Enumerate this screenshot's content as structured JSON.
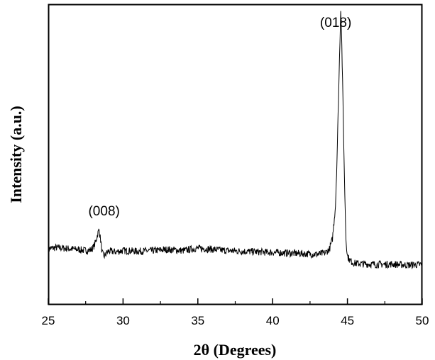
{
  "chart_data": {
    "type": "line",
    "title": "",
    "xlabel": "2θ (Degrees)",
    "ylabel": "Intensity (a.u.)",
    "xlim": [
      25,
      50
    ],
    "ylim": [
      0,
      1
    ],
    "x_ticks": [
      25,
      30,
      35,
      40,
      45,
      50
    ],
    "y_ticks_labeled": false,
    "grid": false,
    "legend": "none",
    "line_color": "#000000",
    "annotations": [
      {
        "text": "(008)",
        "x": 28.4
      },
      {
        "text": "(018)",
        "x": 44.55
      }
    ],
    "series": [
      {
        "x": [
          25.0,
          25.5,
          26.0,
          26.5,
          27.0,
          27.5,
          27.8,
          28.0,
          28.1,
          28.2,
          28.3,
          28.4,
          28.5,
          28.6,
          28.7,
          28.8,
          29.0,
          29.5,
          30.0,
          31.0,
          32.0,
          33.0,
          34.0,
          35.0,
          36.0,
          37.0,
          38.0,
          39.0,
          40.0,
          41.0,
          42.0,
          43.0,
          43.5,
          43.8,
          44.0,
          44.2,
          44.3,
          44.4,
          44.5,
          44.55,
          44.6,
          44.7,
          44.8,
          44.9,
          45.0,
          45.2,
          45.5,
          46.0,
          47.0,
          48.0,
          49.0,
          50.0
        ],
        "y": [
          0.186,
          0.19,
          0.188,
          0.186,
          0.184,
          0.18,
          0.182,
          0.19,
          0.2,
          0.215,
          0.235,
          0.25,
          0.215,
          0.175,
          0.16,
          0.165,
          0.178,
          0.176,
          0.18,
          0.178,
          0.18,
          0.184,
          0.18,
          0.188,
          0.184,
          0.18,
          0.178,
          0.176,
          0.174,
          0.172,
          0.17,
          0.168,
          0.172,
          0.185,
          0.22,
          0.33,
          0.48,
          0.68,
          0.88,
          0.98,
          0.92,
          0.68,
          0.42,
          0.22,
          0.162,
          0.145,
          0.138,
          0.136,
          0.134,
          0.135,
          0.132,
          0.134
        ]
      }
    ]
  }
}
